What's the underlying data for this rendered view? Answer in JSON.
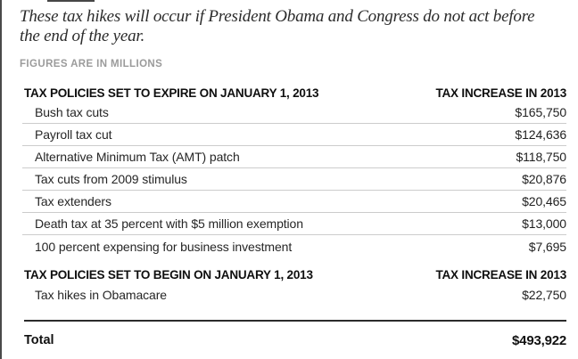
{
  "intro": {
    "text": "These tax hikes will occur if President Obama and Congress do not act before the end of the year."
  },
  "note": "FIGURES ARE IN MILLIONS",
  "table": {
    "sections": [
      {
        "header_left": "TAX POLICIES SET TO EXPIRE ON JANUARY 1, 2013",
        "header_right": "TAX INCREASE IN 2013",
        "rows": [
          {
            "label": "Bush tax cuts",
            "value": "$165,750"
          },
          {
            "label": "Payroll tax cut",
            "value": "$124,636"
          },
          {
            "label": "Alternative Minimum Tax (AMT) patch",
            "value": "$118,750"
          },
          {
            "label": "Tax cuts from 2009 stimulus",
            "value": "$20,876"
          },
          {
            "label": "Tax extenders",
            "value": "$20,465"
          },
          {
            "label": "Death tax at 35 percent with $5 million exemption",
            "value": "$13,000"
          },
          {
            "label": "100 percent expensing for business investment",
            "value": "$7,695"
          }
        ]
      },
      {
        "header_left": "TAX POLICIES SET TO BEGIN ON JANUARY 1, 2013",
        "header_right": "TAX INCREASE IN 2013",
        "rows": [
          {
            "label": "Tax hikes in Obamacare",
            "value": "$22,750"
          }
        ]
      }
    ],
    "total": {
      "label": "Total",
      "value": "$493,922"
    }
  },
  "chart_data": {
    "type": "table",
    "title": "These tax hikes will occur if President Obama and Congress do not act before the end of the year.",
    "units_note": "FIGURES ARE IN MILLIONS",
    "columns": [
      "Tax policy",
      "Tax increase in 2013 ($ millions)"
    ],
    "sections": [
      {
        "name": "Tax policies set to expire on January 1, 2013",
        "rows": [
          [
            "Bush tax cuts",
            165750
          ],
          [
            "Payroll tax cut",
            124636
          ],
          [
            "Alternative Minimum Tax (AMT) patch",
            118750
          ],
          [
            "Tax cuts from 2009 stimulus",
            20876
          ],
          [
            "Tax extenders",
            20465
          ],
          [
            "Death tax at 35 percent with $5 million exemption",
            13000
          ],
          [
            "100 percent expensing for business investment",
            7695
          ]
        ]
      },
      {
        "name": "Tax policies set to begin on January 1, 2013",
        "rows": [
          [
            "Tax hikes in Obamacare",
            22750
          ]
        ]
      }
    ],
    "total": 493922
  },
  "colors": {
    "separator_line": "#cccccc",
    "total_rule": "#2b2b2b",
    "left_border": "#4a4a4a",
    "note_gray": "#9b9b9b",
    "text_dark": "#262626"
  }
}
